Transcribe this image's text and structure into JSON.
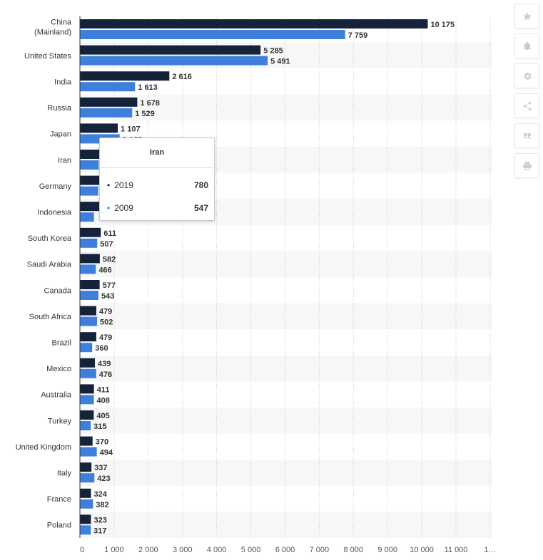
{
  "chart_data": {
    "type": "bar",
    "orientation": "horizontal",
    "categories": [
      "China (Mainland)",
      "United States",
      "India",
      "Russia",
      "Japan",
      "Iran",
      "Germany",
      "Indonesia",
      "South Korea",
      "Saudi Arabia",
      "Canada",
      "South Africa",
      "Brazil",
      "Mexico",
      "Australia",
      "Turkey",
      "United Kingdom",
      "Italy",
      "France",
      "Poland"
    ],
    "category_lines": [
      [
        "China",
        "(Mainland)"
      ],
      [
        "United States"
      ],
      [
        "India"
      ],
      [
        "Russia"
      ],
      [
        "Japan"
      ],
      [
        "Iran"
      ],
      [
        "Germany"
      ],
      [
        "Indonesia"
      ],
      [
        "South Korea"
      ],
      [
        "Saudi Arabia"
      ],
      [
        "Canada"
      ],
      [
        "South Africa"
      ],
      [
        "Brazil"
      ],
      [
        "Mexico"
      ],
      [
        "Australia"
      ],
      [
        "Turkey"
      ],
      [
        "United Kingdom"
      ],
      [
        "Italy"
      ],
      [
        "France"
      ],
      [
        "Poland"
      ]
    ],
    "series": [
      {
        "name": "2019",
        "color": "#15233a",
        "values": [
          10175,
          5285,
          2616,
          1678,
          1107,
          780,
          702,
          618,
          611,
          582,
          577,
          479,
          479,
          439,
          411,
          405,
          370,
          337,
          324,
          323
        ],
        "labels": [
          "10 175",
          "5 285",
          "2 616",
          "1 678",
          "1 107",
          "",
          "",
          "",
          "611",
          "582",
          "577",
          "479",
          "479",
          "439",
          "411",
          "405",
          "370",
          "337",
          "324",
          "323"
        ]
      },
      {
        "name": "2009",
        "color": "#3f7fdc",
        "values": [
          7759,
          5491,
          1613,
          1529,
          1162,
          547,
          534,
          411,
          507,
          466,
          543,
          502,
          360,
          476,
          408,
          315,
          494,
          423,
          382,
          317
        ],
        "labels": [
          "7 759",
          "5 491",
          "1 613",
          "1 529",
          "",
          "",
          "",
          "",
          "507",
          "466",
          "543",
          "502",
          "360",
          "476",
          "408",
          "315",
          "494",
          "423",
          "382",
          "317"
        ]
      }
    ],
    "x_ticks": [
      "0",
      "1 000",
      "2 000",
      "3 000",
      "4 000",
      "5 000",
      "6 000",
      "7 000",
      "8 000",
      "9 000",
      "10 000",
      "11 000",
      "1…"
    ],
    "xlim": [
      0,
      12000
    ],
    "grid": true,
    "partial_label": "1 162"
  },
  "tooltip": {
    "title": "Iran",
    "rows": [
      {
        "label": "2019",
        "value": "780",
        "color": "#15233a"
      },
      {
        "label": "2009",
        "value": "547",
        "color": "#3f7fdc"
      }
    ]
  },
  "toolbar": {
    "buttons": [
      "star-icon",
      "bell-icon",
      "gear-icon",
      "share-icon",
      "quote-icon",
      "print-icon"
    ]
  }
}
